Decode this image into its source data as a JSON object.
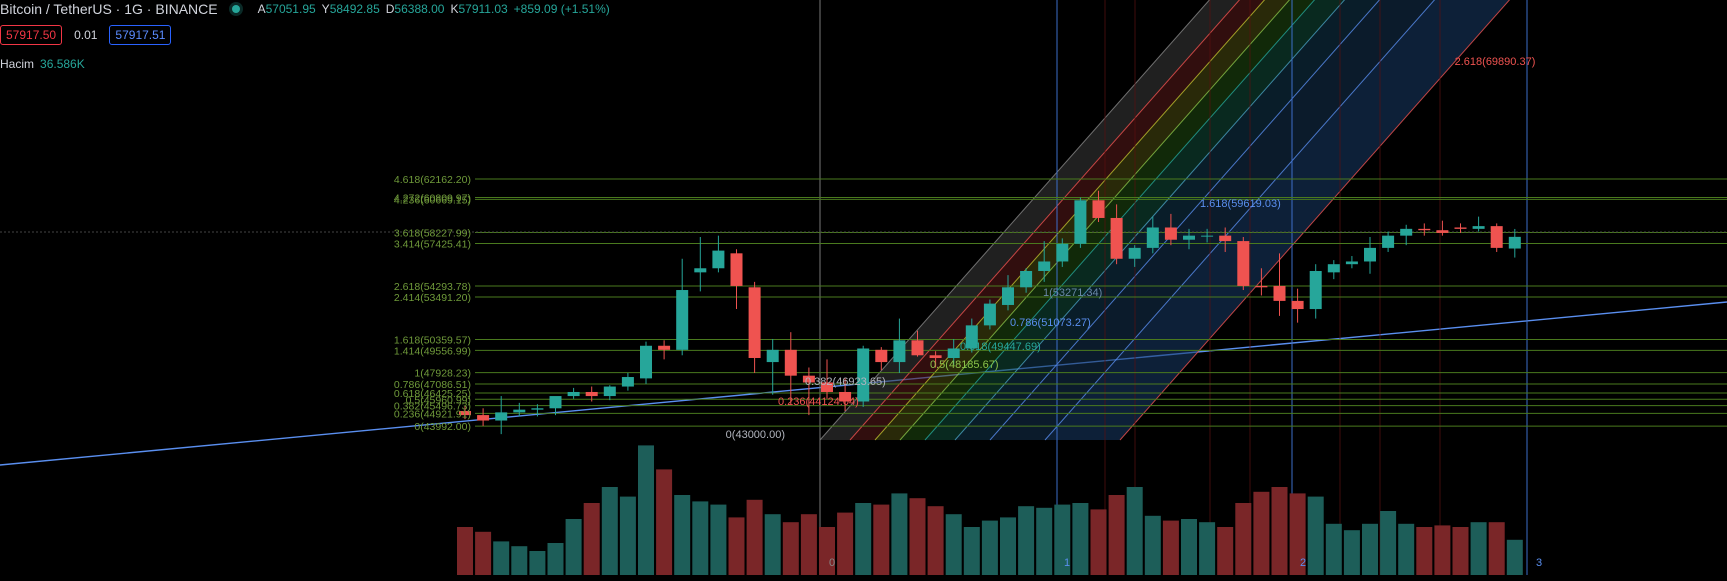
{
  "header": {
    "symbol_title": "Bitcoin / TetherUS · 1G · BINANCE",
    "open_key": "A",
    "open_val": "57051.95",
    "high_key": "Y",
    "high_val": "58492.85",
    "low_key": "D",
    "low_val": "56388.00",
    "close_key": "K",
    "close_val": "57911.03",
    "change": "+859.09 (+1.51%)"
  },
  "trade": {
    "bid": "57917.50",
    "spread": "0.01",
    "ask": "57917.51"
  },
  "volume": {
    "label": "Hacim",
    "value": "36.586K"
  },
  "colors": {
    "up": "#26a69a",
    "down": "#ef5350",
    "fib_line": "#4a7a1e",
    "trend": "#5a8ff0"
  },
  "chart_data": {
    "type": "candlestick",
    "y_range": [
      42600,
      64300
    ],
    "candles": [
      {
        "o": 45100,
        "h": 45500,
        "l": 44500,
        "c": 44800
      },
      {
        "o": 44800,
        "h": 45300,
        "l": 44000,
        "c": 44400
      },
      {
        "o": 44400,
        "h": 46200,
        "l": 43400,
        "c": 45000
      },
      {
        "o": 45000,
        "h": 45700,
        "l": 44700,
        "c": 45200
      },
      {
        "o": 45200,
        "h": 45600,
        "l": 44700,
        "c": 45300
      },
      {
        "o": 45300,
        "h": 46000,
        "l": 44800,
        "c": 46200
      },
      {
        "o": 46200,
        "h": 46800,
        "l": 46000,
        "c": 46500
      },
      {
        "o": 46500,
        "h": 46900,
        "l": 45800,
        "c": 46200
      },
      {
        "o": 46200,
        "h": 47000,
        "l": 45900,
        "c": 46900
      },
      {
        "o": 46900,
        "h": 47900,
        "l": 46600,
        "c": 47600
      },
      {
        "o": 47500,
        "h": 50200,
        "l": 47100,
        "c": 49900
      },
      {
        "o": 49900,
        "h": 50300,
        "l": 48900,
        "c": 49600
      },
      {
        "o": 49600,
        "h": 56300,
        "l": 49200,
        "c": 54000
      },
      {
        "o": 55300,
        "h": 57900,
        "l": 53900,
        "c": 55600
      },
      {
        "o": 55600,
        "h": 58000,
        "l": 55300,
        "c": 56900
      },
      {
        "o": 56700,
        "h": 57000,
        "l": 52600,
        "c": 54300
      },
      {
        "o": 54200,
        "h": 54600,
        "l": 47900,
        "c": 49000
      },
      {
        "o": 48700,
        "h": 50400,
        "l": 46300,
        "c": 49600
      },
      {
        "o": 49600,
        "h": 50900,
        "l": 45600,
        "c": 47700
      },
      {
        "o": 47700,
        "h": 48300,
        "l": 44800,
        "c": 47200
      },
      {
        "o": 47200,
        "h": 48900,
        "l": 46000,
        "c": 46500
      },
      {
        "o": 46500,
        "h": 47500,
        "l": 45100,
        "c": 45800
      },
      {
        "o": 45800,
        "h": 49900,
        "l": 45400,
        "c": 49700
      },
      {
        "o": 49600,
        "h": 49800,
        "l": 48100,
        "c": 48700
      },
      {
        "o": 48700,
        "h": 51900,
        "l": 47900,
        "c": 50300
      },
      {
        "o": 50300,
        "h": 51000,
        "l": 49100,
        "c": 49200
      },
      {
        "o": 49200,
        "h": 49500,
        "l": 48300,
        "c": 49000
      },
      {
        "o": 49000,
        "h": 50400,
        "l": 48500,
        "c": 49700
      },
      {
        "o": 49700,
        "h": 51900,
        "l": 49400,
        "c": 51400
      },
      {
        "o": 51400,
        "h": 53300,
        "l": 51100,
        "c": 53000
      },
      {
        "o": 52900,
        "h": 55100,
        "l": 52500,
        "c": 54200
      },
      {
        "o": 54200,
        "h": 55600,
        "l": 53800,
        "c": 55400
      },
      {
        "o": 55400,
        "h": 57600,
        "l": 54600,
        "c": 56100
      },
      {
        "o": 56100,
        "h": 57800,
        "l": 55700,
        "c": 57400
      },
      {
        "o": 57400,
        "h": 60800,
        "l": 57100,
        "c": 60600
      },
      {
        "o": 60600,
        "h": 61300,
        "l": 59000,
        "c": 59300
      },
      {
        "o": 59300,
        "h": 60300,
        "l": 55900,
        "c": 56300
      },
      {
        "o": 56300,
        "h": 57300,
        "l": 55700,
        "c": 57100
      },
      {
        "o": 57100,
        "h": 59400,
        "l": 56700,
        "c": 58600
      },
      {
        "o": 58600,
        "h": 59600,
        "l": 57300,
        "c": 57700
      },
      {
        "o": 57700,
        "h": 58500,
        "l": 57000,
        "c": 58000
      },
      {
        "o": 58000,
        "h": 58500,
        "l": 57500,
        "c": 58000
      },
      {
        "o": 58000,
        "h": 58600,
        "l": 56800,
        "c": 57600
      },
      {
        "o": 57600,
        "h": 57900,
        "l": 54000,
        "c": 54300
      },
      {
        "o": 54300,
        "h": 55600,
        "l": 53600,
        "c": 54200
      },
      {
        "o": 54300,
        "h": 56700,
        "l": 52100,
        "c": 53200
      },
      {
        "o": 53200,
        "h": 54100,
        "l": 51600,
        "c": 52600
      },
      {
        "o": 52600,
        "h": 55900,
        "l": 51900,
        "c": 55400
      },
      {
        "o": 55300,
        "h": 56200,
        "l": 54800,
        "c": 55900
      },
      {
        "o": 55900,
        "h": 56500,
        "l": 55600,
        "c": 56100
      },
      {
        "o": 56100,
        "h": 57900,
        "l": 55200,
        "c": 57100
      },
      {
        "o": 57100,
        "h": 58300,
        "l": 56800,
        "c": 58000
      },
      {
        "o": 58000,
        "h": 58800,
        "l": 57300,
        "c": 58500
      },
      {
        "o": 58500,
        "h": 58900,
        "l": 58000,
        "c": 58400
      },
      {
        "o": 58400,
        "h": 59100,
        "l": 58000,
        "c": 58200
      },
      {
        "o": 58600,
        "h": 58900,
        "l": 58200,
        "c": 58500
      },
      {
        "o": 58500,
        "h": 59400,
        "l": 58300,
        "c": 58700
      },
      {
        "o": 58700,
        "h": 58900,
        "l": 56800,
        "c": 57100
      },
      {
        "o": 57051.95,
        "h": 58492.85,
        "l": 56388,
        "c": 57911.03
      }
    ],
    "volume": [
      0.3,
      0.27,
      0.21,
      0.18,
      0.15,
      0.2,
      0.35,
      0.45,
      0.55,
      0.49,
      0.81,
      0.66,
      0.5,
      0.46,
      0.44,
      0.36,
      0.47,
      0.38,
      0.33,
      0.38,
      0.3,
      0.39,
      0.45,
      0.44,
      0.51,
      0.48,
      0.43,
      0.38,
      0.3,
      0.34,
      0.36,
      0.43,
      0.42,
      0.44,
      0.45,
      0.41,
      0.5,
      0.55,
      0.37,
      0.34,
      0.35,
      0.33,
      0.3,
      0.45,
      0.52,
      0.55,
      0.51,
      0.49,
      0.32,
      0.28,
      0.32,
      0.4,
      0.32,
      0.3,
      0.31,
      0.3,
      0.33,
      0.33,
      0.22
    ],
    "fib_retracement_labels": [
      {
        "text": "4.618(62162.20)",
        "price": 62162.2
      },
      {
        "text": "4.272(60809.97)",
        "price": 60809.97
      },
      {
        "text": "4.236(60669.15)",
        "price": 60669.15
      },
      {
        "text": "3.618(58227.99)",
        "price": 58227.99
      },
      {
        "text": "3.414(57425.41)",
        "price": 57425.41
      },
      {
        "text": "2.618(54293.78)",
        "price": 54293.78
      },
      {
        "text": "2.414(53491.20)",
        "price": 53491.2
      },
      {
        "text": "1.618(50359.57)",
        "price": 50359.57
      },
      {
        "text": "1.414(49556.99)",
        "price": 49556.99
      },
      {
        "text": "1(47928.23)",
        "price": 47928.23
      },
      {
        "text": "0.786(47086.51)",
        "price": 47086.51
      },
      {
        "text": "0.618(46425.25)",
        "price": 46425.25
      },
      {
        "text": "0.5(45960.99)",
        "price": 45960.99
      },
      {
        "text": "0.382(45496.73)",
        "price": 45496.73
      },
      {
        "text": "0.236(44921.91)",
        "price": 44921.91
      },
      {
        "text": "0(43992.00)",
        "price": 43992.0
      }
    ],
    "fib_channel_labels": [
      {
        "text": "0(43000.00)",
        "color": "#b2b5be"
      },
      {
        "text": "0.236(44124.04)",
        "color": "#ef5350"
      },
      {
        "text": "0.382(46923.65)",
        "color": "#b2b5be"
      },
      {
        "text": "0.5(48185.67)",
        "color": "#8bc34a"
      },
      {
        "text": "0.618(49447.69)",
        "color": "#26a69a"
      },
      {
        "text": "0.786(51073.27)",
        "color": "#5a8ff0"
      },
      {
        "text": "1(53271.34)",
        "color": "#6a88a8"
      },
      {
        "text": "1.618(59619.03)",
        "color": "#5a8ff0"
      },
      {
        "text": "2.618(69890.37)",
        "color": "#ef5350"
      }
    ],
    "time_zone_labels": [
      "0",
      "1",
      "2",
      "3"
    ]
  }
}
